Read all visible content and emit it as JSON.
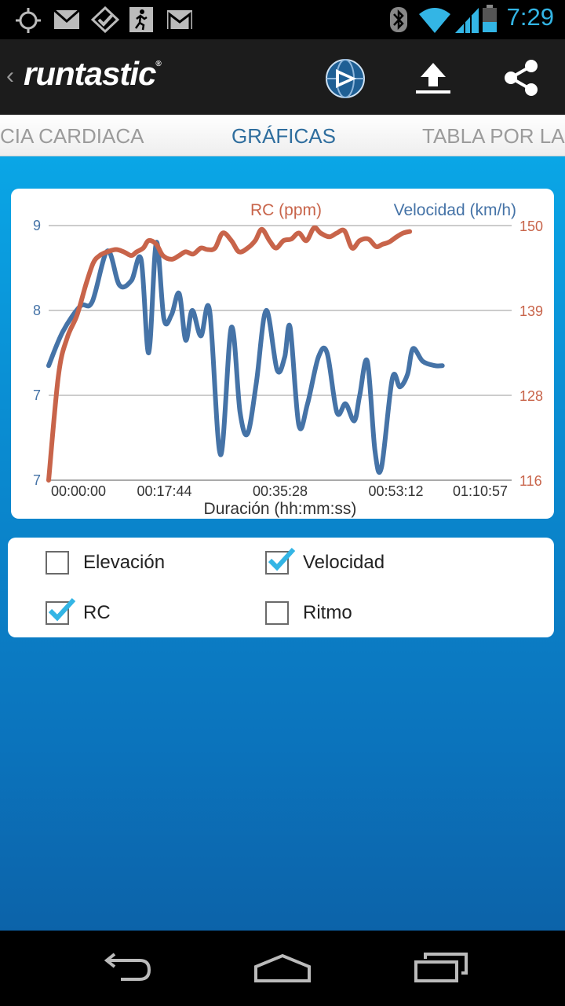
{
  "status_bar": {
    "time": "7:29",
    "icons": [
      "gps-icon",
      "gmail-icon",
      "check-icon",
      "runner-icon",
      "gmail-icon",
      "bluetooth-icon",
      "wifi-icon",
      "signal-icon",
      "battery-icon"
    ]
  },
  "app_bar": {
    "brand": "runtastic",
    "brand_mark": "®",
    "actions": [
      "video-globe-icon",
      "upload-icon",
      "share-icon"
    ]
  },
  "tabs": [
    {
      "label": "FRECUENCIA CARDIACA",
      "visible_text": "CIA CARDIACA"
    },
    {
      "label": "GRÁFICAS",
      "active": true
    },
    {
      "label": "TABLA POR LA",
      "visible_text": "TABLA POR LA"
    }
  ],
  "checkboxes": [
    {
      "label": "Elevación",
      "checked": false
    },
    {
      "label": "Velocidad",
      "checked": true
    },
    {
      "label": "RC",
      "checked": true
    },
    {
      "label": "Ritmo",
      "checked": false
    }
  ],
  "colors": {
    "speed": "#4573a7",
    "heart_rate": "#c8644a",
    "accent": "#33b5e5"
  },
  "chart_data": {
    "type": "line",
    "xlabel": "Duración (hh:mm:ss)",
    "x_ticks": [
      "00:00:00",
      "00:17:44",
      "00:35:28",
      "00:53:12",
      "01:10:57"
    ],
    "xlim_seconds": [
      0,
      4257
    ],
    "legend": [
      "RC (ppm)",
      "Velocidad (km/h)"
    ],
    "legend_placement": "top-right",
    "grid": true,
    "left_axis": {
      "ticks": [
        "9",
        "8",
        "7",
        "7"
      ],
      "ylim": [
        6,
        9
      ]
    },
    "right_axis": {
      "ticks": [
        "150",
        "139",
        "128",
        "116"
      ],
      "ylim": [
        116,
        150
      ]
    },
    "series": [
      {
        "name": "Velocidad (km/h)",
        "axis": "left",
        "x": [
          0,
          130,
          290,
          400,
          540,
          650,
          760,
          850,
          920,
          990,
          1060,
          1130,
          1200,
          1260,
          1320,
          1400,
          1480,
          1580,
          1680,
          1760,
          1830,
          1910,
          2000,
          2100,
          2170,
          2220,
          2300,
          2380,
          2480,
          2560,
          2650,
          2730,
          2810,
          2860,
          2930,
          3000,
          3060,
          3160,
          3230,
          3300,
          3350,
          3440,
          3550,
          3620,
          3700,
          3800,
          3880,
          3950,
          4020,
          4080,
          4150,
          4257
        ],
        "values": [
          7.35,
          7.75,
          8.05,
          8.1,
          8.7,
          8.3,
          8.35,
          8.6,
          7.5,
          8.8,
          7.9,
          7.95,
          8.2,
          7.65,
          8.0,
          7.7,
          8.0,
          6.3,
          7.8,
          6.8,
          6.55,
          7.15,
          8.0,
          7.3,
          7.45,
          7.8,
          6.65,
          6.9,
          7.45,
          7.5,
          6.8,
          6.9,
          6.7,
          7.0,
          7.4,
          6.35,
          6.15,
          7.2,
          7.1,
          7.25,
          7.55,
          7.4,
          7.35,
          7.35,
          7.35,
          7.35,
          7.35,
          7.35,
          7.35,
          7.35,
          7.35,
          7.35
        ]
      },
      {
        "name": "RC (ppm)",
        "axis": "right",
        "x": [
          0,
          90,
          170,
          260,
          340,
          410,
          470,
          540,
          620,
          690,
          760,
          810,
          870,
          920,
          990,
          1050,
          1130,
          1200,
          1260,
          1330,
          1400,
          1460,
          1530,
          1600,
          1680,
          1750,
          1830,
          1900,
          1960,
          2030,
          2090,
          2160,
          2230,
          2300,
          2370,
          2440,
          2500,
          2580,
          2650,
          2720,
          2790,
          2860,
          2940,
          3010,
          3070,
          3130,
          3200,
          3260,
          3320,
          3400,
          3470,
          3540,
          3610,
          3680,
          3760,
          3830,
          3900,
          3970,
          4040,
          4110,
          4180,
          4257
        ],
        "values": [
          116,
          130,
          135,
          138,
          142,
          145,
          146,
          146.5,
          146.8,
          146.5,
          146,
          146.5,
          147,
          148,
          147.5,
          146,
          145.5,
          146,
          146.5,
          146.2,
          147,
          146.8,
          147,
          149,
          148,
          146.5,
          147,
          148,
          149.5,
          148,
          147,
          148,
          148.2,
          149,
          148,
          149.7,
          149,
          148.5,
          149,
          149.3,
          147,
          148,
          148.2,
          147.2,
          147.5,
          147.8,
          148.5,
          149,
          149.2,
          149.5,
          149.7,
          149.8,
          149.8,
          149.8,
          149.8,
          149.8,
          149.8,
          149.8,
          149.8,
          149.8,
          149.8,
          149.8
        ]
      }
    ]
  },
  "nav_bar": [
    "back-icon",
    "home-icon",
    "recent-apps-icon"
  ]
}
